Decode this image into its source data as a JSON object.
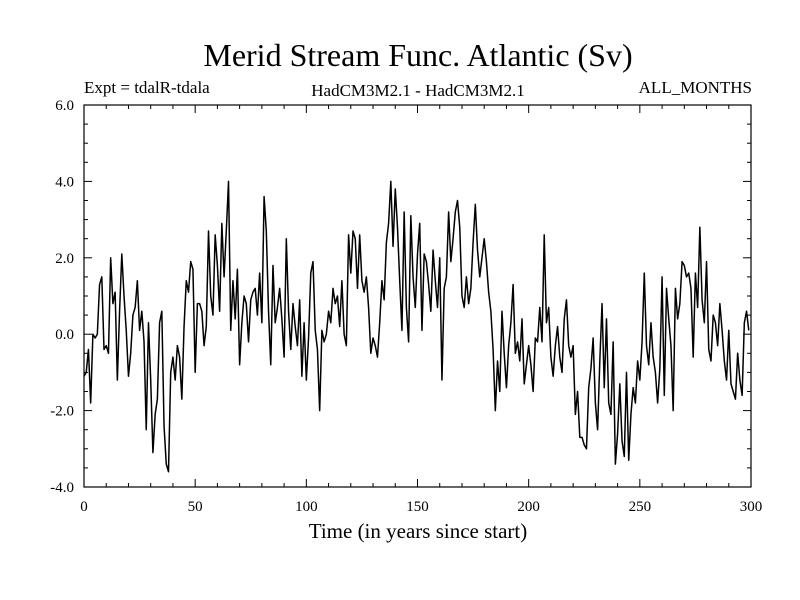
{
  "chart_data": {
    "type": "line",
    "title": "Merid Stream Func. Atlantic (Sv)",
    "subtitle_left": "Expt = tdalR-tdala",
    "subtitle_center": "HadCM3M2.1 - HadCM3M2.1",
    "subtitle_right": "ALL_MONTHS",
    "xlabel": "Time (in years since start)",
    "ylabel": "",
    "xlim": [
      0,
      300
    ],
    "ylim": [
      -4.0,
      6.0
    ],
    "x_ticks": [
      0,
      50,
      100,
      150,
      200,
      250,
      300
    ],
    "x_tick_labels": [
      "0",
      "50",
      "100",
      "150",
      "200",
      "250",
      "300"
    ],
    "y_ticks": [
      -4,
      -2,
      0,
      2,
      4,
      6
    ],
    "y_tick_labels": [
      "-4.0",
      "-2.0",
      "0.0",
      "2.0",
      "4.0",
      "6.0"
    ],
    "grid": false,
    "series": [
      {
        "name": "Merid Stream Func. Atlantic",
        "color": "#000000",
        "x_start": 0,
        "x_step": 1,
        "values": [
          -1.1,
          -1.0,
          -0.4,
          -1.8,
          0.0,
          -0.1,
          0.0,
          1.3,
          1.5,
          -0.4,
          -0.3,
          -0.5,
          2.0,
          0.8,
          1.1,
          -1.2,
          0.6,
          2.1,
          1.0,
          0.1,
          -1.1,
          -0.5,
          0.5,
          0.7,
          1.4,
          0.1,
          0.6,
          -0.2,
          -2.5,
          0.3,
          -1.2,
          -3.1,
          -2.1,
          -1.7,
          0.3,
          0.6,
          -2.4,
          -3.4,
          -3.6,
          -1.0,
          -0.6,
          -1.2,
          -0.3,
          -0.6,
          -1.7,
          0.2,
          1.4,
          1.1,
          1.9,
          1.7,
          -1.0,
          0.8,
          0.8,
          0.6,
          -0.3,
          0.2,
          2.7,
          1.0,
          0.5,
          2.6,
          1.8,
          0.6,
          2.9,
          1.5,
          2.7,
          4.0,
          0.1,
          1.4,
          0.4,
          1.7,
          -0.8,
          0.3,
          1.0,
          0.8,
          -0.2,
          0.9,
          1.1,
          1.2,
          0.5,
          1.6,
          0.3,
          3.6,
          2.7,
          0.6,
          -0.8,
          1.8,
          0.3,
          0.7,
          1.2,
          0.4,
          -0.6,
          2.5,
          0.6,
          -0.4,
          0.8,
          0.2,
          -0.3,
          0.9,
          -1.1,
          0.3,
          -1.2,
          -0.1,
          1.6,
          1.9,
          0.1,
          -0.4,
          -2.0,
          0.1,
          -0.2,
          0.0,
          0.6,
          0.3,
          1.2,
          0.8,
          1.0,
          0.2,
          1.4,
          0.0,
          -0.3,
          2.6,
          1.6,
          2.7,
          2.5,
          1.2,
          2.6,
          1.4,
          1.1,
          1.5,
          0.7,
          -0.5,
          -0.1,
          -0.3,
          -0.6,
          0.3,
          1.4,
          0.9,
          2.4,
          2.9,
          4.0,
          2.3,
          3.8,
          2.8,
          1.4,
          0.1,
          3.2,
          0.7,
          -0.2,
          3.1,
          1.5,
          0.7,
          2.1,
          2.9,
          0.1,
          2.1,
          1.9,
          1.3,
          0.6,
          2.2,
          1.4,
          0.7,
          2.0,
          -1.2,
          1.2,
          1.5,
          3.2,
          1.9,
          2.5,
          3.2,
          3.5,
          2.8,
          1.0,
          0.7,
          1.5,
          0.8,
          1.2,
          2.4,
          3.4,
          2.2,
          1.5,
          2.0,
          2.5,
          1.9,
          1.1,
          0.6,
          -0.4,
          -2.0,
          -0.7,
          -1.5,
          0.6,
          -0.5,
          -1.4,
          -0.3,
          0.3,
          1.3,
          -0.5,
          -0.2,
          -0.7,
          0.4,
          -1.3,
          -0.8,
          -0.3,
          -0.8,
          -1.5,
          -0.1,
          -0.2,
          0.7,
          -0.2,
          2.6,
          0.3,
          0.7,
          -0.6,
          -1.1,
          -0.3,
          0.2,
          -0.6,
          -1.0,
          0.4,
          0.9,
          -0.3,
          -0.6,
          -0.3,
          -2.1,
          -1.5,
          -2.7,
          -2.7,
          -2.9,
          -3.0,
          -1.4,
          -0.9,
          -0.1,
          -1.8,
          -2.5,
          -0.7,
          0.8,
          -1.4,
          0.4,
          -1.8,
          -2.1,
          -0.2,
          -3.4,
          -2.6,
          -1.3,
          -2.8,
          -3.2,
          -1.0,
          -3.3,
          -2.1,
          -1.4,
          -1.8,
          -0.7,
          -1.2,
          -0.2,
          1.6,
          -0.3,
          -0.8,
          0.3,
          -0.6,
          -1.0,
          -1.8,
          -0.9,
          1.5,
          -1.6,
          1.2,
          0.4,
          -0.3,
          -2.0,
          1.2,
          0.4,
          0.8,
          1.9,
          1.8,
          1.5,
          1.6,
          1.2,
          -0.6,
          1.6,
          0.7,
          2.8,
          0.9,
          0.3,
          1.9,
          -0.4,
          -0.7,
          0.5,
          0.3,
          -0.3,
          0.8,
          0.1,
          -0.7,
          -1.2,
          0.1,
          -1.3,
          -1.5,
          -1.7,
          -0.5,
          -1.2,
          -1.6,
          0.3,
          0.6,
          0.1
        ]
      }
    ]
  }
}
